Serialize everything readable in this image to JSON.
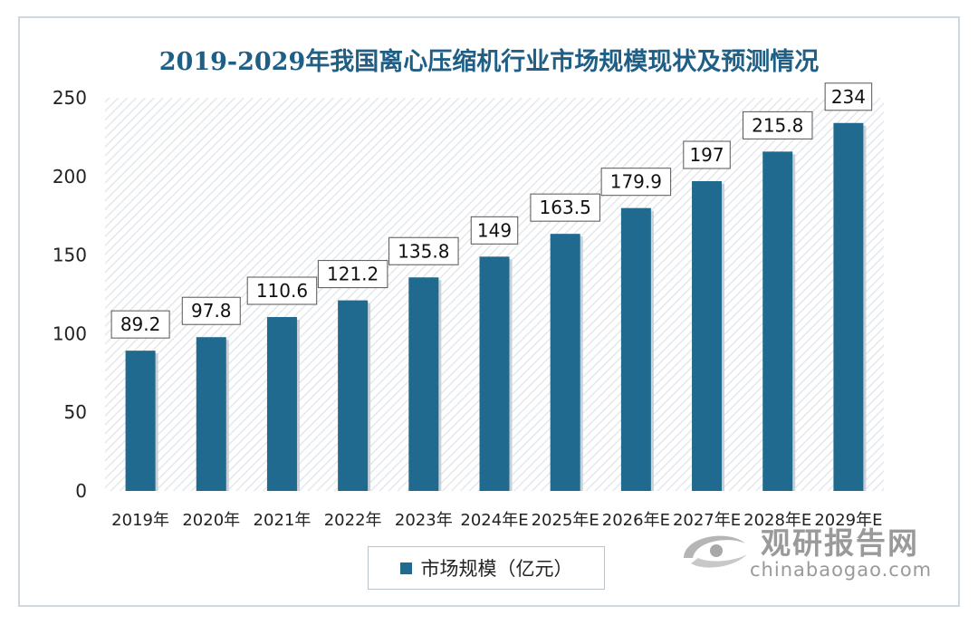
{
  "chart_data": {
    "type": "bar",
    "title": "2019-2029年我国离心压缩机行业市场规模现状及预测情况",
    "categories": [
      "2019年",
      "2020年",
      "2021年",
      "2022年",
      "2023年",
      "2024年E",
      "2025年E",
      "2026年E",
      "2027年E",
      "2028年E",
      "2029年E"
    ],
    "series": [
      {
        "name": "市场规模（亿元）",
        "values": [
          89.2,
          97.8,
          110.6,
          121.2,
          135.8,
          149,
          163.5,
          179.9,
          197,
          215.8,
          234
        ],
        "labels": [
          "89.2",
          "97.8",
          "110.6",
          "121.2",
          "135.8",
          "149",
          "163.5",
          "179.9",
          "197",
          "215.8",
          "234"
        ]
      }
    ],
    "ylim": [
      0,
      250
    ],
    "yticks": [
      "0",
      "50",
      "100",
      "150",
      "200",
      "250"
    ],
    "ytick_values": [
      0,
      50,
      100,
      150,
      200,
      250
    ],
    "xlabel": "",
    "ylabel": "",
    "legend_position": "bottom",
    "grid": false
  },
  "colors": {
    "bar": "#1f6a8e",
    "title": "#1f5f86",
    "hatch": "#e7eaee"
  },
  "watermark": {
    "brand": "观研报告网",
    "url": "chinabaogao.com"
  }
}
